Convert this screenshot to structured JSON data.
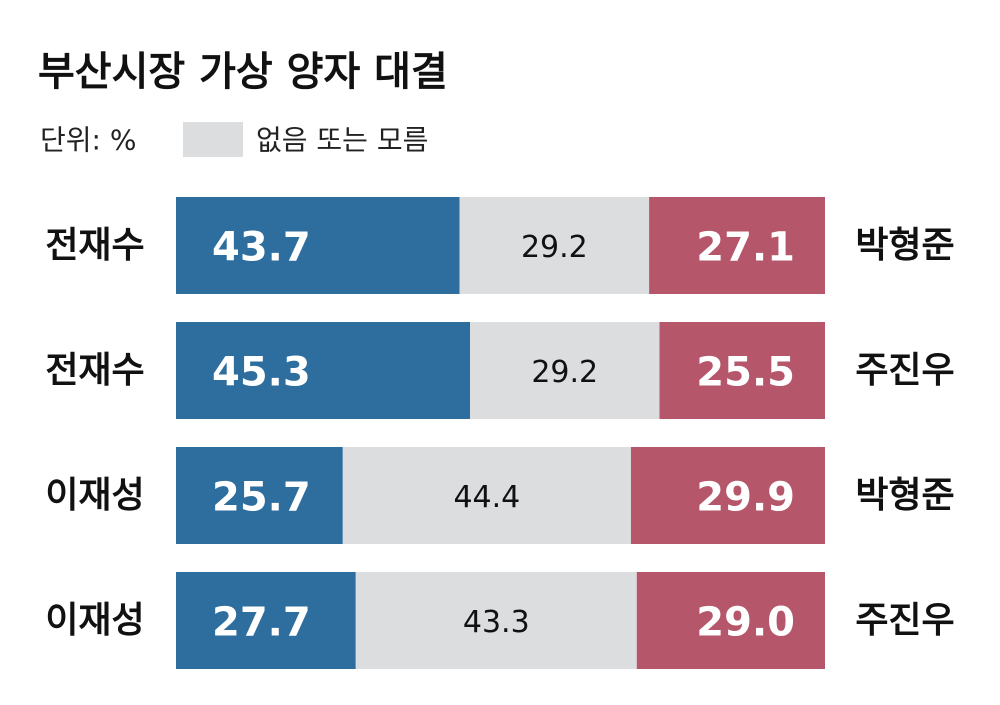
{
  "chart_data": {
    "type": "stacked-bar-horizontal",
    "title": "부산시장 가상 양자 대결",
    "subtitle": "단위: %",
    "categories": [
      "전재수",
      "전재수",
      "이재성",
      "이재성"
    ],
    "categories_right": [
      "박형준",
      "주진우",
      "박형준",
      "주진우"
    ],
    "xlim": [
      0,
      100
    ],
    "series": [
      {
        "color": "#2e6e9e",
        "values": [
          43.7,
          45.3,
          25.7,
          27.7
        ],
        "value_labels": [
          "43.7",
          "45.3",
          "25.7",
          "27.7"
        ]
      },
      {
        "name": "없음 또는 모름",
        "color": "#dcdddf",
        "values": [
          29.2,
          29.2,
          44.4,
          43.3
        ],
        "value_labels": [
          "29.2",
          "29.2",
          "44.4",
          "43.3"
        ]
      },
      {
        "color": "#b5566a",
        "values": [
          27.1,
          25.5,
          29.9,
          29.0
        ],
        "value_labels": [
          "27.1",
          "25.5",
          "29.9",
          "29.0"
        ]
      }
    ]
  }
}
